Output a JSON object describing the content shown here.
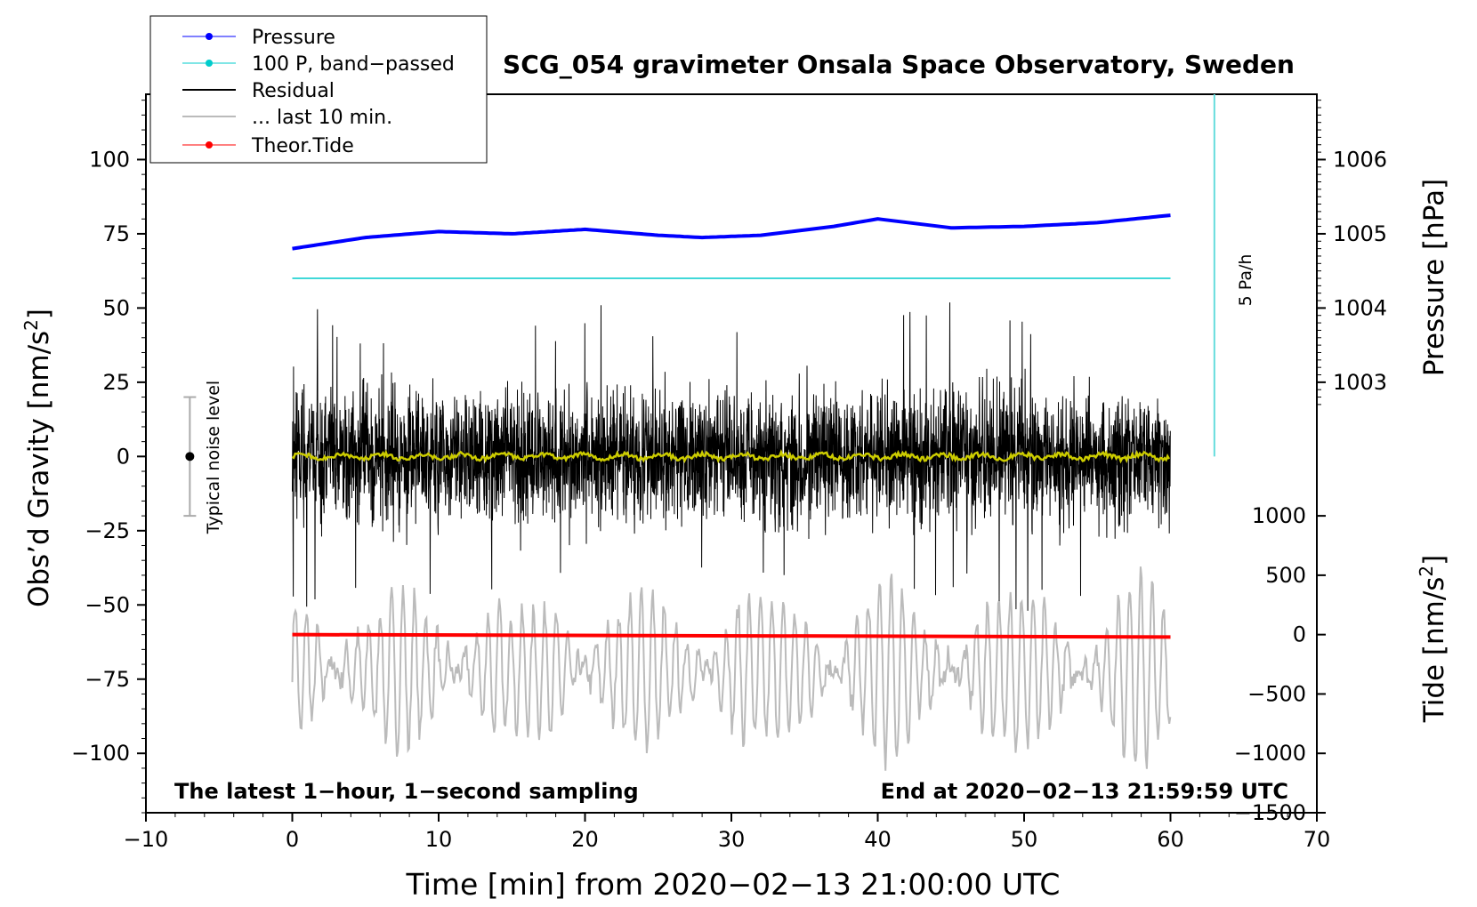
{
  "chart_data": {
    "type": "line",
    "title": "SCG_054 gravimeter Onsala Space Observatory, Sweden",
    "xlabel": "Time [min] from 2020−02−13 21:00:00 UTC",
    "ylabel_left": "Obs’d Gravity [nm/s",
    "ylabel_left_sup": "2",
    "ylabel_left_tail": "]",
    "ylabel_pressure": "Pressure [hPa]",
    "ylabel_tide": "Tide [nm/s",
    "ylabel_tide_sup": "2",
    "ylabel_tide_tail": "]",
    "xlim": [
      -10,
      70
    ],
    "ylim": [
      -120,
      122
    ],
    "x_ticks": [
      -10,
      0,
      10,
      20,
      30,
      40,
      50,
      60,
      70
    ],
    "x_tick_labels": [
      "−10",
      "0",
      "10",
      "20",
      "30",
      "40",
      "50",
      "60",
      "70"
    ],
    "y_ticks": [
      -100,
      -75,
      -50,
      -25,
      0,
      25,
      50,
      75,
      100
    ],
    "y_tick_labels": [
      "−100",
      "−75",
      "−50",
      "−25",
      "0",
      "25",
      "50",
      "75",
      "100"
    ],
    "pressure_ticks": [
      1003,
      1004,
      1005,
      1006
    ],
    "pressure_tick_labels": [
      "1003",
      "1004",
      "1005",
      "1006"
    ],
    "pressure_axis": {
      "value_a": 1005,
      "left_a": 75,
      "value_b": 1003,
      "left_b": 25
    },
    "tide_ticks": [
      -1500,
      -1000,
      -500,
      0,
      500,
      1000
    ],
    "tide_tick_labels": [
      "−1500",
      "−1000",
      "−500",
      "0",
      "500",
      "1000"
    ],
    "tide_axis": {
      "value_a": 0,
      "left_a": -60,
      "value_b": 1000,
      "left_b": -20
    },
    "legend": [
      {
        "label": "Pressure",
        "color": "#0000ff",
        "marker": true
      },
      {
        "label": "100 P, band−passed",
        "color": "#00cccc",
        "marker": true
      },
      {
        "label": "Residual",
        "color": "#000000",
        "marker": false
      },
      {
        "label": "... last 10 min.",
        "color": "#bbbbbb",
        "marker": false
      },
      {
        "label": "Theor.Tide",
        "color": "#ff0000",
        "marker": true
      }
    ],
    "series": [
      {
        "name": "Pressure",
        "color": "#0000ff",
        "unit": "hPa",
        "x": [
          0,
          5,
          10,
          15,
          20,
          25,
          28,
          32,
          37,
          40,
          45,
          50,
          55,
          60
        ],
        "values": [
          1004.8,
          1004.95,
          1005.03,
          1005.0,
          1005.06,
          1004.98,
          1004.95,
          1004.98,
          1005.1,
          1005.2,
          1005.08,
          1005.1,
          1005.15,
          1005.25
        ]
      },
      {
        "name": "100 P, band−passed",
        "color": "#00cccc",
        "unit": "nm/s2",
        "x": [
          0,
          60
        ],
        "values": [
          60,
          60
        ]
      },
      {
        "name": "Residual",
        "color": "#000000",
        "unit": "nm/s2",
        "x_range": [
          0,
          60
        ],
        "typical_amplitude": 20,
        "peak_amplitude": 52
      },
      {
        "name": "Residual smoothed",
        "color": "#cccc00",
        "unit": "nm/s2",
        "x_range": [
          0,
          60
        ],
        "values_near": 0
      },
      {
        "name": "... last 10 min.",
        "color": "#bbbbbb",
        "unit": "nm/s2",
        "x_range": [
          0,
          60
        ],
        "center": -72,
        "typical_amplitude": 25
      },
      {
        "name": "Theor.Tide",
        "color": "#ff0000",
        "unit": "nm/s2",
        "x": [
          0,
          60
        ],
        "tide_values": [
          0,
          -20
        ]
      }
    ],
    "rate_bar": {
      "label": "5 Pa/h",
      "x": 63,
      "from": 0,
      "to": 122,
      "color": "#66dddd"
    },
    "noise_bar": {
      "label": "Typical noise level",
      "x": -7,
      "center": 0,
      "low": -20,
      "high": 20
    },
    "annotation_left": "The latest 1−hour, 1−second sampling",
    "annotation_right": "End at 2020−02−13 21:59:59 UTC"
  }
}
